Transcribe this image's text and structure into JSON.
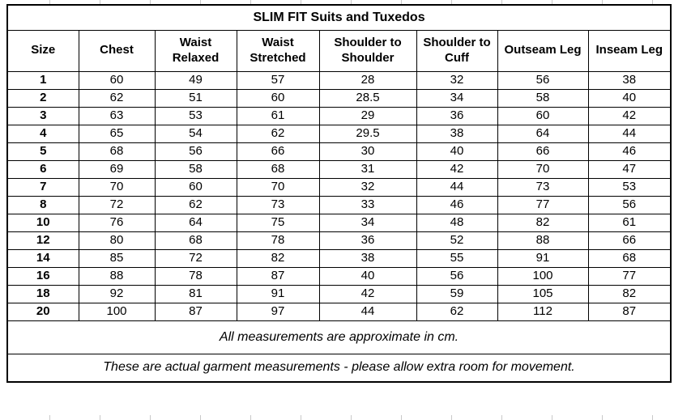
{
  "colors": {
    "border": "#000000",
    "text": "#000000",
    "background": "#ffffff",
    "gridline": "#c9c9c9"
  },
  "chart_data": {
    "type": "table",
    "title": "SLIM FIT Suits and Tuxedos",
    "unit": "cm",
    "columns": [
      "Size",
      "Chest",
      "Waist Relaxed",
      "Waist Stretched",
      "Shoulder to Shoulder",
      "Shoulder to Cuff",
      "Outseam Leg",
      "Inseam Leg"
    ],
    "rows": [
      [
        "1",
        "60",
        "49",
        "57",
        "28",
        "32",
        "56",
        "38"
      ],
      [
        "2",
        "62",
        "51",
        "60",
        "28.5",
        "34",
        "58",
        "40"
      ],
      [
        "3",
        "63",
        "53",
        "61",
        "29",
        "36",
        "60",
        "42"
      ],
      [
        "4",
        "65",
        "54",
        "62",
        "29.5",
        "38",
        "64",
        "44"
      ],
      [
        "5",
        "68",
        "56",
        "66",
        "30",
        "40",
        "66",
        "46"
      ],
      [
        "6",
        "69",
        "58",
        "68",
        "31",
        "42",
        "70",
        "47"
      ],
      [
        "7",
        "70",
        "60",
        "70",
        "32",
        "44",
        "73",
        "53"
      ],
      [
        "8",
        "72",
        "62",
        "73",
        "33",
        "46",
        "77",
        "56"
      ],
      [
        "10",
        "76",
        "64",
        "75",
        "34",
        "48",
        "82",
        "61"
      ],
      [
        "12",
        "80",
        "68",
        "78",
        "36",
        "52",
        "88",
        "66"
      ],
      [
        "14",
        "85",
        "72",
        "82",
        "38",
        "55",
        "91",
        "68"
      ],
      [
        "16",
        "88",
        "78",
        "87",
        "40",
        "56",
        "100",
        "77"
      ],
      [
        "18",
        "92",
        "81",
        "91",
        "42",
        "59",
        "105",
        "82"
      ],
      [
        "20",
        "100",
        "87",
        "97",
        "44",
        "62",
        "112",
        "87"
      ]
    ],
    "notes": [
      "All measurements are approximate in cm.",
      "These are actual garment measurements - please allow extra room for movement."
    ]
  }
}
